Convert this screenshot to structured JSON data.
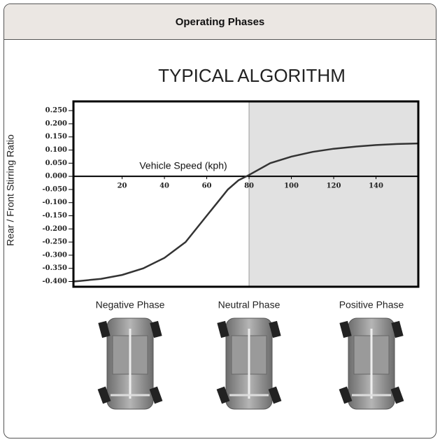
{
  "header": {
    "title": "Operating Phases"
  },
  "chart_data": {
    "type": "line",
    "title": "TYPICAL ALGORITHM",
    "x_label": "Vehicle Speed (kph)",
    "y_label": "Rear / Front Stirring Ratio",
    "x": [
      -3,
      0,
      10,
      20,
      30,
      40,
      50,
      60,
      65,
      70,
      75,
      80,
      90,
      100,
      110,
      120,
      130,
      140,
      150,
      160
    ],
    "values": [
      -0.4,
      -0.398,
      -0.39,
      -0.375,
      -0.35,
      -0.31,
      -0.25,
      -0.15,
      -0.1,
      -0.05,
      -0.015,
      0.005,
      0.05,
      0.075,
      0.093,
      0.105,
      0.113,
      0.119,
      0.123,
      0.125
    ],
    "color": "#333333",
    "xlim": [
      -3,
      160
    ],
    "ylim": [
      -0.42,
      0.285
    ],
    "xticks": [
      20,
      40,
      60,
      80,
      100,
      120,
      140
    ],
    "yticks": [
      {
        "value": 0.25,
        "label": "0.250"
      },
      {
        "value": 0.2,
        "label": "0.200"
      },
      {
        "value": 0.15,
        "label": "0.150"
      },
      {
        "value": 0.1,
        "label": "0.100"
      },
      {
        "value": 0.05,
        "label": "0.050"
      },
      {
        "value": 0,
        "label": "0.000"
      },
      {
        "value": -0.05,
        "label": "-0.050"
      },
      {
        "value": -0.1,
        "label": "-0.100"
      },
      {
        "value": -0.15,
        "label": "-0.150"
      },
      {
        "value": -0.2,
        "label": "-0.200"
      },
      {
        "value": -0.25,
        "label": "-0.250"
      },
      {
        "value": -0.3,
        "label": "-0.300"
      },
      {
        "value": -0.35,
        "label": "-0.350"
      },
      {
        "value": -0.4,
        "label": "-0.400"
      }
    ],
    "shaded_region": [
      80,
      160
    ],
    "shade_color": "#e1e1e1"
  },
  "phases": [
    "Negative Phase",
    "Neutral Phase",
    "Positive Phase"
  ]
}
